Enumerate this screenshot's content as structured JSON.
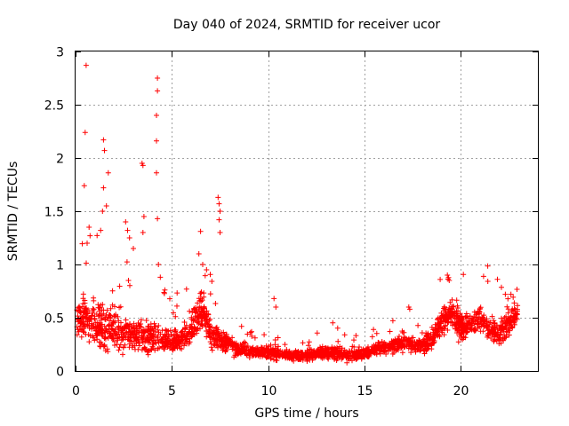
{
  "chart_data": {
    "type": "scatter",
    "title": "Day 040 of 2024, SRMTID for receiver ucor",
    "xlabel": "GPS time / hours",
    "ylabel": "SRMTID / TECUs",
    "xlim": [
      0,
      24
    ],
    "ylim": [
      0,
      3
    ],
    "xticks": [
      0,
      5,
      10,
      15,
      20
    ],
    "xtick_labels": [
      "0",
      "5",
      "10",
      "15",
      "20"
    ],
    "yticks": [
      0,
      0.5,
      1,
      1.5,
      2,
      2.5,
      3
    ],
    "ytick_labels": [
      "0",
      "0.5",
      "1",
      "1.5",
      "2",
      "2.5",
      "3"
    ],
    "grid": true,
    "marker": "+",
    "series_color": "#ff0000",
    "envelope": {
      "description": "Approximate dense trend of SRMTID points over the day",
      "x": [
        0,
        0.5,
        1,
        1.5,
        2,
        2.5,
        3,
        3.5,
        4,
        4.5,
        5,
        5.5,
        6,
        6.5,
        7,
        7.5,
        8,
        8.5,
        9,
        9.5,
        10,
        10.5,
        11,
        11.5,
        12,
        12.5,
        13,
        13.5,
        14,
        14.5,
        15,
        15.5,
        16,
        16.5,
        17,
        17.5,
        18,
        18.5,
        19,
        19.5,
        20,
        20.5,
        21,
        21.5,
        22,
        22.5,
        23
      ],
      "y": [
        0.5,
        0.5,
        0.45,
        0.4,
        0.38,
        0.35,
        0.35,
        0.33,
        0.32,
        0.3,
        0.28,
        0.3,
        0.38,
        0.6,
        0.35,
        0.28,
        0.25,
        0.2,
        0.18,
        0.18,
        0.18,
        0.16,
        0.15,
        0.14,
        0.14,
        0.16,
        0.18,
        0.18,
        0.15,
        0.15,
        0.17,
        0.2,
        0.22,
        0.24,
        0.25,
        0.25,
        0.25,
        0.3,
        0.45,
        0.55,
        0.4,
        0.45,
        0.5,
        0.4,
        0.35,
        0.45,
        0.55
      ],
      "spread": [
        0.25,
        0.3,
        0.35,
        0.35,
        0.3,
        0.25,
        0.25,
        0.25,
        0.25,
        0.2,
        0.15,
        0.15,
        0.2,
        0.3,
        0.2,
        0.15,
        0.12,
        0.1,
        0.08,
        0.08,
        0.1,
        0.08,
        0.07,
        0.07,
        0.07,
        0.08,
        0.09,
        0.1,
        0.08,
        0.08,
        0.08,
        0.09,
        0.1,
        0.1,
        0.12,
        0.12,
        0.12,
        0.15,
        0.2,
        0.22,
        0.2,
        0.2,
        0.2,
        0.2,
        0.18,
        0.2,
        0.15
      ]
    },
    "outliers": [
      [
        0.55,
        2.87
      ],
      [
        0.5,
        2.24
      ],
      [
        0.45,
        1.74
      ],
      [
        1.45,
        2.17
      ],
      [
        1.5,
        2.07
      ],
      [
        1.45,
        1.72
      ],
      [
        1.7,
        1.86
      ],
      [
        3.45,
        1.95
      ],
      [
        3.5,
        1.93
      ],
      [
        3.55,
        1.45
      ],
      [
        3.5,
        1.3
      ],
      [
        4.25,
        2.75
      ],
      [
        4.25,
        2.63
      ],
      [
        4.2,
        2.4
      ],
      [
        4.2,
        2.16
      ],
      [
        4.2,
        1.86
      ],
      [
        4.25,
        1.43
      ],
      [
        7.4,
        1.63
      ],
      [
        7.45,
        1.57
      ],
      [
        7.5,
        1.5
      ],
      [
        7.45,
        1.42
      ],
      [
        7.5,
        1.3
      ],
      [
        0.7,
        1.35
      ],
      [
        0.75,
        1.27
      ],
      [
        0.6,
        1.2
      ],
      [
        1.3,
        1.32
      ],
      [
        1.4,
        1.5
      ],
      [
        1.6,
        1.55
      ],
      [
        2.6,
        1.4
      ],
      [
        2.7,
        1.32
      ],
      [
        2.8,
        1.25
      ],
      [
        3.0,
        1.15
      ],
      [
        4.3,
        1.0
      ],
      [
        4.4,
        0.88
      ],
      [
        6.4,
        1.1
      ],
      [
        6.6,
        1.0
      ],
      [
        6.8,
        0.95
      ],
      [
        10.3,
        0.68
      ],
      [
        10.4,
        0.6
      ],
      [
        17.3,
        0.6
      ],
      [
        17.35,
        0.58
      ],
      [
        19.3,
        0.9
      ],
      [
        19.4,
        0.85
      ],
      [
        21.9,
        0.86
      ],
      [
        22.6,
        0.72
      ]
    ],
    "point_count": 3000
  }
}
